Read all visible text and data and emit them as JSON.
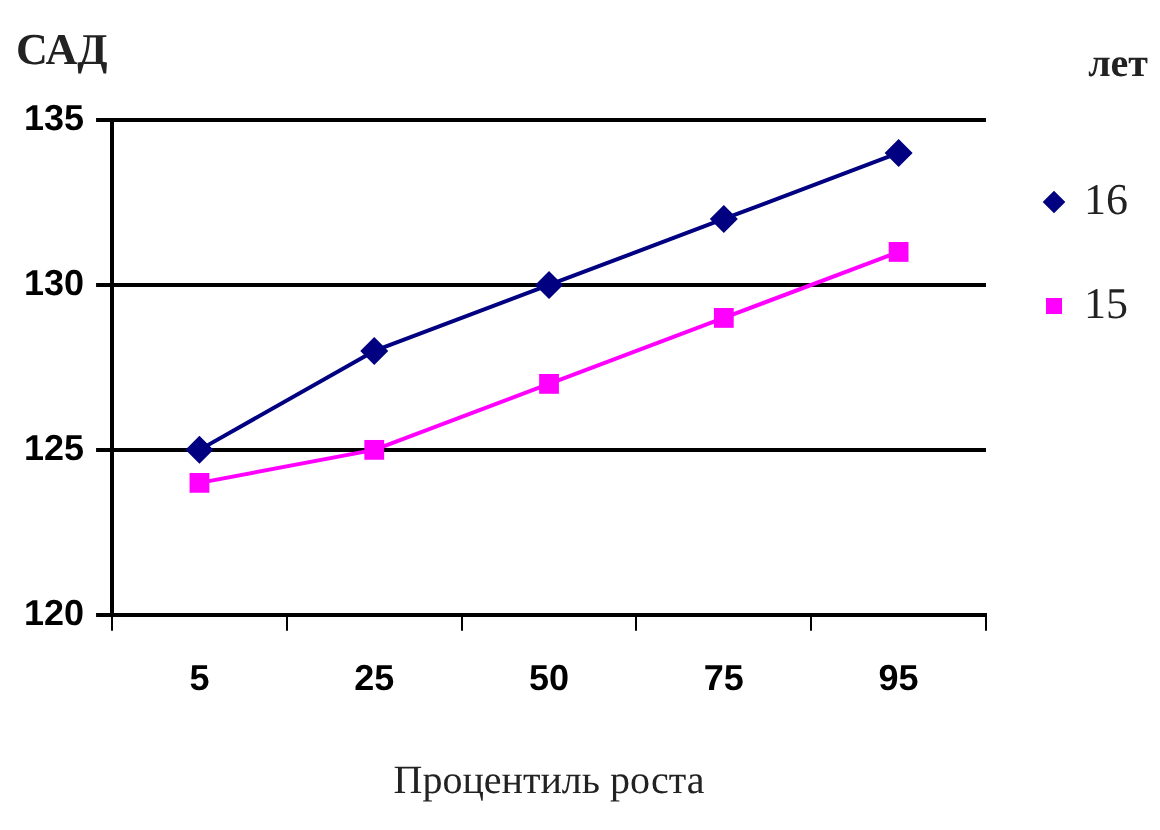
{
  "chart_data": {
    "type": "line",
    "ylabel": "САД",
    "xlabel": "Процентиль роста",
    "legend_title": "лет",
    "categories": [
      "5",
      "25",
      "50",
      "75",
      "95"
    ],
    "series": [
      {
        "name": "16",
        "color": "#000080",
        "marker": "diamond",
        "values": [
          125,
          128,
          130,
          132,
          134
        ]
      },
      {
        "name": "15",
        "color": "#ff00ff",
        "marker": "square",
        "values": [
          124,
          125,
          127,
          129,
          131
        ]
      }
    ],
    "ylim": [
      120,
      135
    ],
    "yticks": [
      120,
      125,
      130,
      135
    ],
    "grid": "y",
    "legend": "right",
    "line_style": "solid"
  }
}
